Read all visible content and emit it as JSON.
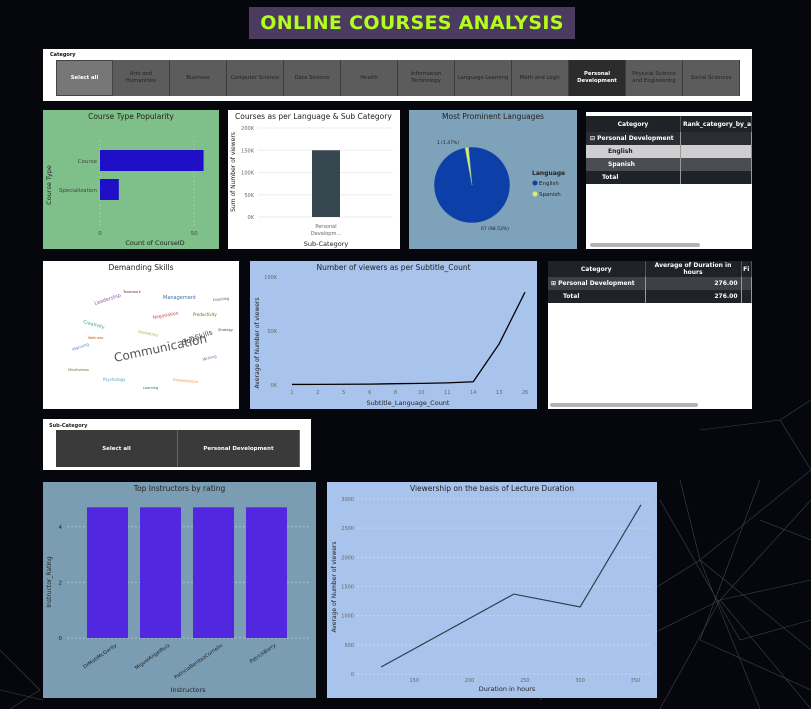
{
  "title": "ONLINE COURSES ANALYSIS",
  "category_slicer": {
    "label": "Category",
    "items": [
      {
        "label": "Select all",
        "state": "select-all"
      },
      {
        "label": "Arts and Humanities",
        "state": ""
      },
      {
        "label": "Business",
        "state": ""
      },
      {
        "label": "Computer Science",
        "state": ""
      },
      {
        "label": "Data Science",
        "state": ""
      },
      {
        "label": "Health",
        "state": ""
      },
      {
        "label": "Information Technology",
        "state": ""
      },
      {
        "label": "Language Learning",
        "state": ""
      },
      {
        "label": "Math and Logic",
        "state": ""
      },
      {
        "label": "Personal Development",
        "state": "active"
      },
      {
        "label": "Physical Science and Engineering",
        "state": ""
      },
      {
        "label": "Social Sciences",
        "state": ""
      }
    ]
  },
  "course_type_popularity": {
    "title": "Course Type Popularity",
    "ylabel": "Course Type",
    "xlabel": "Count of CourseID",
    "categories": [
      "Course",
      "Specialization"
    ],
    "values": [
      55,
      10
    ],
    "xticks": [
      "0",
      "50"
    ],
    "xmax": 60,
    "bar_color": "#1f10c8"
  },
  "lang_subcategory": {
    "title": "Courses as per Language & Sub Category",
    "ylabel": "Sum of Number of viewers",
    "xlabel": "Sub-Category",
    "category_label_line1": "Personal",
    "category_label_line2": "Developm...",
    "yticks": [
      "200K",
      "150K",
      "100K",
      "50K",
      "0K"
    ],
    "ymax": 200000,
    "value": 150000,
    "bar_color": "#37474f"
  },
  "prominent_languages": {
    "title": "Most Prominent Languages",
    "legend_title": "Language",
    "slices": [
      {
        "name": "English",
        "value": 67,
        "label": "67 (98.53%)",
        "color": "#0d3fa8"
      },
      {
        "name": "Spanish",
        "value": 1,
        "label": "1 (1.47%)",
        "color": "#d6f06b"
      }
    ]
  },
  "rank_table": {
    "headers": [
      "Category",
      "Rank_category_by_a"
    ],
    "rows": [
      {
        "label": "Personal Development",
        "expander": "⊟"
      },
      {
        "label": "English",
        "expander": ""
      },
      {
        "label": "Spanish",
        "expander": ""
      },
      {
        "label": "Total",
        "expander": ""
      }
    ]
  },
  "demanding_skills": {
    "title": "Demanding Skills",
    "words": [
      {
        "text": "Communication",
        "size": 12,
        "color": "#555"
      },
      {
        "text": "SoftSkills",
        "size": 7,
        "color": "#444"
      },
      {
        "text": "Leadership",
        "size": 5,
        "color": "#8a5a9e"
      },
      {
        "text": "Management",
        "size": 5,
        "color": "#3b6fb5"
      },
      {
        "text": "Creativity",
        "size": 4.5,
        "color": "#2b9c8f"
      },
      {
        "text": "Negotiation",
        "size": 4.5,
        "color": "#c0504d"
      },
      {
        "text": "Productivity",
        "size": 4,
        "color": "#7f6000"
      },
      {
        "text": "Planning",
        "size": 4,
        "color": "#4f81bd"
      },
      {
        "text": "Marketing",
        "size": 4,
        "color": "#9bbb59"
      },
      {
        "text": "Writing",
        "size": 4,
        "color": "#8064a2"
      },
      {
        "text": "Psychology",
        "size": 4,
        "color": "#4bacc6"
      },
      {
        "text": "Presentation",
        "size": 4,
        "color": "#f79646"
      },
      {
        "text": "Strategy",
        "size": 3.5,
        "color": "#2c4d75"
      },
      {
        "text": "Teamwork",
        "size": 3.5,
        "color": "#772c2a"
      },
      {
        "text": "Mindfulness",
        "size": 3.5,
        "color": "#5f7530"
      },
      {
        "text": "Coaching",
        "size": 3.5,
        "color": "#4d3b62"
      },
      {
        "text": "Learning",
        "size": 3.5,
        "color": "#276a7c"
      },
      {
        "text": "Wellness",
        "size": 3.5,
        "color": "#b65708"
      }
    ]
  },
  "subtitle_chart": {
    "title": "Number of viewers as per Subtitle_Count",
    "ylabel": "Average of Number of viewers",
    "xlabel": "Subtitle_Language_Count",
    "categories": [
      "1",
      "2",
      "5",
      "6",
      "8",
      "10",
      "11",
      "14",
      "13",
      "26"
    ],
    "values": [
      500,
      600,
      700,
      800,
      1200,
      1500,
      2000,
      3000,
      38000,
      86000
    ],
    "yticks": [
      "100K",
      "50K",
      "0K"
    ],
    "ymax": 100000
  },
  "duration_table": {
    "headers": [
      "Category",
      "Average of Duration in hours",
      "Fi"
    ],
    "rows": [
      {
        "expander": "⊞",
        "label": "Personal Development",
        "value": "276.00"
      },
      {
        "expander": "",
        "label": "Total",
        "value": "276.00"
      }
    ]
  },
  "subcategory_slicer": {
    "label": "Sub-Category",
    "items": [
      "Select all",
      "Personal Development"
    ]
  },
  "top_instructors": {
    "title": "Top Instructors by rating",
    "ylabel": "Instructor_Rating",
    "xlabel": "Instructors",
    "categories": [
      "DrMattMcGarity",
      "MiguelAngelRuiz",
      "PatriciaBenitezCornelio",
      "PatrickBarry"
    ],
    "values": [
      4.7,
      4.7,
      4.7,
      4.7
    ],
    "yticks": [
      "4",
      "2",
      "0"
    ],
    "ymax": 5,
    "bar_color": "#5128e0"
  },
  "lecture_duration": {
    "title": "Viewership on the basis of Lecture Duration",
    "ylabel": "Average of Number of viewers",
    "xlabel": "Duration in hours",
    "xticks": [
      "150",
      "200",
      "250",
      "300",
      "350"
    ],
    "yticks": [
      "3000",
      "2500",
      "2000",
      "1500",
      "1000",
      "500",
      "0"
    ],
    "xmin": 100,
    "xmax": 365,
    "ymax": 3000,
    "x": [
      120,
      240,
      300,
      355
    ],
    "y": [
      120,
      1370,
      1150,
      2900
    ]
  }
}
